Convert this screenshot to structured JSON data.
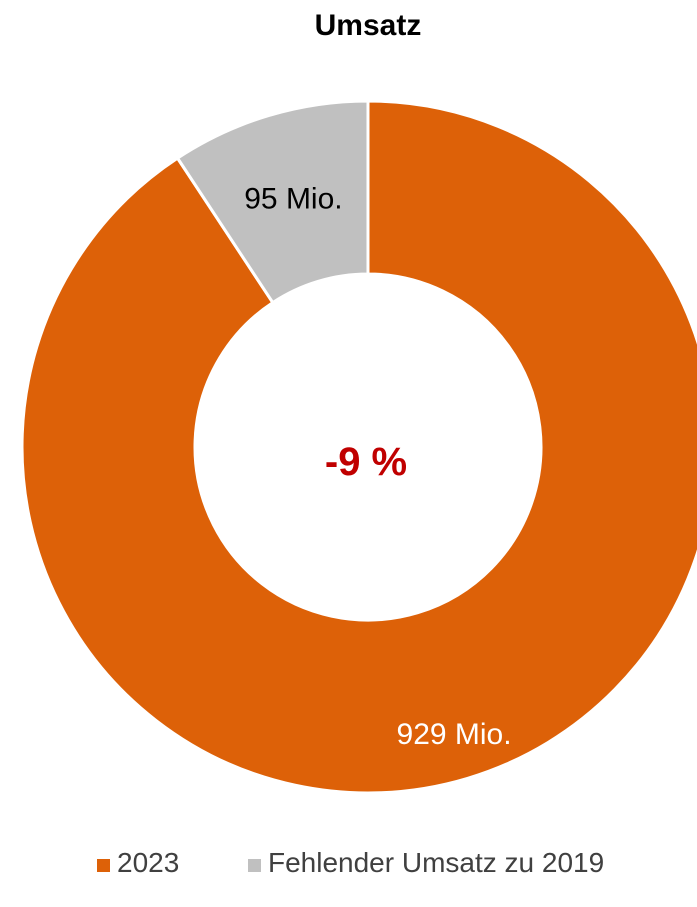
{
  "chart_data": {
    "type": "pie",
    "variant": "donut",
    "title": "Umsatz",
    "center_label": "-9 %",
    "center_label_color": "#c00000",
    "slices": [
      {
        "name": "2023",
        "value": 929,
        "label": "929 Mio.",
        "color": "#dd6108",
        "label_color": "#ffffff"
      },
      {
        "name": "Fehlender Umsatz zu 2019",
        "value": 95,
        "label": "95 Mio.",
        "color": "#c0c0c0",
        "label_color": "#000000"
      }
    ],
    "legend": {
      "position": "bottom",
      "entries": [
        "2023",
        "Fehlender Umsatz zu 2019"
      ]
    }
  }
}
